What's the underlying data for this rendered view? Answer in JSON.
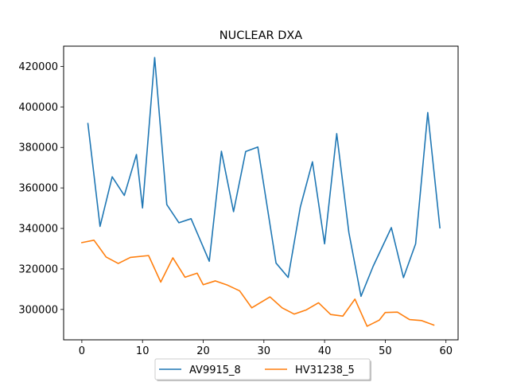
{
  "chart_data": {
    "type": "line",
    "title": "NUCLEAR DXA",
    "xlabel": "",
    "ylabel": "",
    "xlim": [
      -3,
      62
    ],
    "ylim": [
      285000,
      430000
    ],
    "xticks": [
      0,
      10,
      20,
      30,
      40,
      50,
      60
    ],
    "yticks": [
      300000,
      320000,
      340000,
      360000,
      380000,
      400000,
      420000
    ],
    "grid": false,
    "legend_position": "bottom-center",
    "series": [
      {
        "name": "AV9915_8",
        "color": "#1f77b4",
        "x": [
          1,
          3,
          5,
          7,
          9,
          10,
          12,
          14,
          16,
          18,
          21,
          23,
          25,
          27,
          29,
          32,
          34,
          36,
          38,
          40,
          42,
          44,
          46,
          48,
          51,
          53,
          55,
          57,
          59
        ],
        "y": [
          391800,
          341000,
          365500,
          356300,
          376500,
          350100,
          424400,
          351800,
          342800,
          344800,
          323800,
          378100,
          348300,
          378000,
          380200,
          322900,
          315800,
          350500,
          372900,
          332400,
          386800,
          338000,
          306500,
          321300,
          340400,
          315700,
          332400,
          397200,
          340300
        ]
      },
      {
        "name": "HV31238_5",
        "color": "#ff7f0e",
        "x": [
          0,
          2,
          4,
          6,
          8,
          11,
          13,
          15,
          17,
          19,
          20,
          22,
          24,
          26,
          28,
          31,
          33,
          35,
          37,
          39,
          41,
          43,
          45,
          47,
          49,
          50,
          52,
          54,
          56,
          58
        ],
        "y": [
          333000,
          334200,
          325900,
          322700,
          325700,
          326600,
          313500,
          325500,
          315900,
          317900,
          312200,
          314100,
          312000,
          309200,
          300800,
          306200,
          300800,
          297700,
          299800,
          303300,
          297500,
          296700,
          305100,
          291700,
          294700,
          298500,
          298700,
          295000,
          294500,
          292300
        ]
      }
    ]
  }
}
